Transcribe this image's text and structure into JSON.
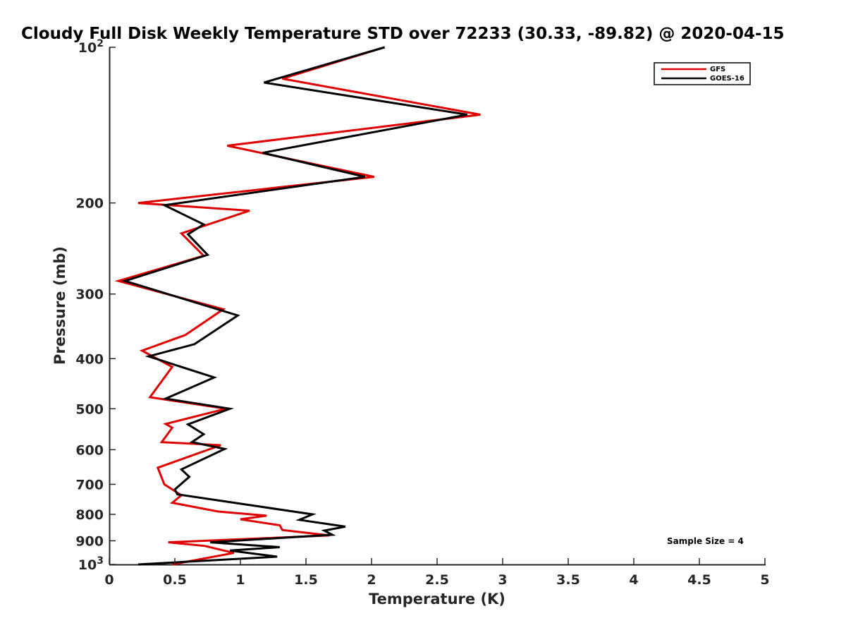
{
  "chart_data": {
    "type": "line",
    "title": "Cloudy Full Disk Weekly Temperature STD over 72233 (30.33, -89.82) @ 2020-04-15",
    "xlabel": "Temperature (K)",
    "ylabel": "Pressure (mb)",
    "xlim": [
      0,
      5
    ],
    "ylim": [
      100,
      1000
    ],
    "yscale": "log",
    "yreversed": true,
    "xticks": [
      "0",
      "0.5",
      "1",
      "1.5",
      "2",
      "2.5",
      "3",
      "3.5",
      "4",
      "4.5",
      "5"
    ],
    "yticks": [
      {
        "value": 100,
        "base": "10",
        "exp": "2"
      },
      {
        "value": 200,
        "label": "200"
      },
      {
        "value": 300,
        "label": "300"
      },
      {
        "value": 400,
        "label": "400"
      },
      {
        "value": 500,
        "label": "500"
      },
      {
        "value": 600,
        "label": "600"
      },
      {
        "value": 700,
        "label": "700"
      },
      {
        "value": 800,
        "label": "800"
      },
      {
        "value": 900,
        "label": "900"
      },
      {
        "value": 1000,
        "base": "10",
        "exp": "3"
      }
    ],
    "legend_position": "top-right",
    "series": [
      {
        "name": "GFS",
        "color": "#e00000",
        "x": [
          2.1,
          1.32,
          2.83,
          0.9,
          2.02,
          0.22,
          1.07,
          0.55,
          0.72,
          0.07,
          0.87,
          0.58,
          0.25,
          0.48,
          0.31,
          0.89,
          0.43,
          0.48,
          0.4,
          0.85,
          0.37,
          0.42,
          0.55,
          0.48,
          0.83,
          1.2,
          1.0,
          1.3,
          1.32,
          1.68,
          0.45,
          0.73,
          0.95,
          0.48
        ],
        "y": [
          100,
          115,
          135,
          155,
          178,
          200,
          207,
          229,
          253,
          283,
          321,
          360,
          386,
          415,
          475,
          500,
          535,
          544,
          580,
          588,
          650,
          700,
          735,
          760,
          790,
          805,
          818,
          840,
          858,
          879,
          906,
          921,
          950,
          1000
        ]
      },
      {
        "name": "GOES-16",
        "color": "#000000",
        "x": [
          2.1,
          1.18,
          2.73,
          1.17,
          1.95,
          0.42,
          0.72,
          0.6,
          0.75,
          0.12,
          0.98,
          0.65,
          0.3,
          0.8,
          0.43,
          0.92,
          0.6,
          0.72,
          0.63,
          0.88,
          0.55,
          0.61,
          0.5,
          0.52,
          1.55,
          1.45,
          1.8,
          1.64,
          1.7,
          0.77,
          1.3,
          0.92,
          1.28,
          0.22
        ],
        "y": [
          100,
          117,
          135,
          160,
          178,
          202,
          220,
          230,
          252,
          283,
          330,
          375,
          396,
          435,
          478,
          500,
          536,
          560,
          580,
          598,
          655,
          677,
          716,
          732,
          800,
          820,
          845,
          860,
          876,
          906,
          926,
          940,
          966,
          1000
        ]
      }
    ],
    "annotations": [
      "Sample Size = 4"
    ]
  }
}
